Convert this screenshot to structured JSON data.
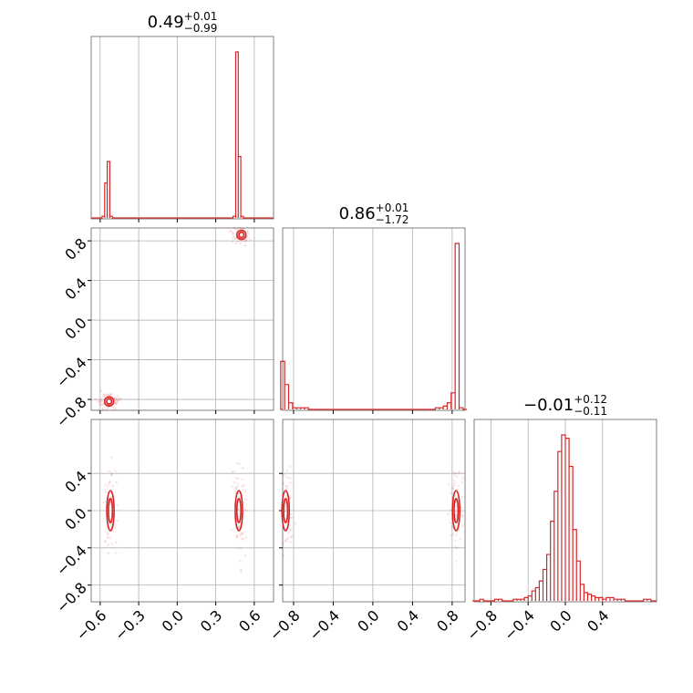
{
  "chart_data": {
    "type": "corner",
    "color": "#d62728",
    "parameters": [
      {
        "title_value": "0.49",
        "title_plus": "+0.01",
        "title_minus": "−0.99",
        "range": [
          -0.67,
          0.75
        ]
      },
      {
        "title_value": "0.86",
        "title_plus": "+0.01",
        "title_minus": "−1.72",
        "range": [
          -0.91,
          0.93
        ]
      },
      {
        "title_value": "−0.01",
        "title_plus": "+0.12",
        "title_minus": "−0.11",
        "range": [
          -0.98,
          0.98
        ]
      }
    ],
    "tick_labels": {
      "p0": [
        "−0.6",
        "−0.3",
        "0.0",
        "0.3",
        "0.6"
      ],
      "p1": [
        "−0.8",
        "−0.4",
        "0.0",
        "0.4",
        "0.8"
      ],
      "p2": [
        "−0.8",
        "−0.4",
        "0.0",
        "0.4"
      ]
    },
    "tick_values": {
      "p0": [
        -0.6,
        -0.3,
        0.0,
        0.3,
        0.6
      ],
      "p1": [
        -0.8,
        -0.4,
        0.0,
        0.4,
        0.8
      ],
      "p2": [
        -0.8,
        -0.4,
        0.0,
        0.4
      ]
    },
    "histograms": [
      {
        "param": 0,
        "bins": [
          -0.595,
          -0.575,
          -0.555,
          -0.535,
          -0.515,
          -0.495,
          -0.475,
          0.405,
          0.425,
          0.445,
          0.465,
          0.485,
          0.505,
          0.525,
          0.545
        ],
        "values": [
          0,
          0.01,
          0.21,
          0.34,
          0.01,
          0,
          0,
          0,
          0,
          0.01,
          1.0,
          0.37,
          0.01,
          0,
          0
        ]
      },
      {
        "param": 1,
        "bins": [
          -0.91,
          -0.87,
          -0.83,
          -0.79,
          -0.75,
          -0.71,
          -0.67,
          0.65,
          0.69,
          0.73,
          0.77,
          0.81,
          0.85,
          0.89,
          0.93
        ],
        "values": [
          0.29,
          0.15,
          0.04,
          0.01,
          0.01,
          0.01,
          0.01,
          0.01,
          0.01,
          0.02,
          0.04,
          0.1,
          1.0,
          0.01,
          0
        ]
      },
      {
        "param": 2,
        "bins": [
          -0.98,
          -0.94,
          -0.9,
          -0.86,
          -0.82,
          -0.78,
          -0.74,
          -0.7,
          -0.66,
          -0.62,
          -0.58,
          -0.54,
          -0.5,
          -0.46,
          -0.42,
          -0.38,
          -0.34,
          -0.3,
          -0.26,
          -0.22,
          -0.18,
          -0.14,
          -0.1,
          -0.06,
          -0.02,
          0.02,
          0.06,
          0.1,
          0.14,
          0.18,
          0.22,
          0.26,
          0.3,
          0.34,
          0.38,
          0.42,
          0.46,
          0.5,
          0.54,
          0.58,
          0.62,
          0.66,
          0.7,
          0.74,
          0.78,
          0.82,
          0.86,
          0.9,
          0.94
        ],
        "values": [
          0,
          0,
          0.01,
          0,
          0,
          0,
          0.01,
          0.01,
          0,
          0,
          0,
          0.01,
          0.01,
          0.01,
          0.02,
          0.03,
          0.06,
          0.08,
          0.12,
          0.19,
          0.28,
          0.48,
          0.66,
          0.9,
          1.0,
          0.98,
          0.81,
          0.43,
          0.24,
          0.1,
          0.05,
          0.04,
          0.03,
          0.02,
          0.02,
          0.01,
          0.02,
          0.02,
          0.01,
          0.01,
          0.01,
          0,
          0,
          0,
          0,
          0,
          0.01,
          0.01,
          0
        ]
      }
    ],
    "joint_modes": [
      {
        "x_param": 0,
        "y_param": 1,
        "centers": [
          [
            0.5,
            0.86
          ],
          [
            -0.53,
            -0.82
          ]
        ]
      },
      {
        "x_param": 0,
        "y_param": 2,
        "centers": [
          [
            -0.52,
            0.0
          ],
          [
            0.48,
            0.0
          ]
        ]
      },
      {
        "x_param": 1,
        "y_param": 2,
        "centers": [
          [
            -0.88,
            0.0
          ],
          [
            0.84,
            0.0
          ]
        ]
      }
    ],
    "grid": true
  }
}
